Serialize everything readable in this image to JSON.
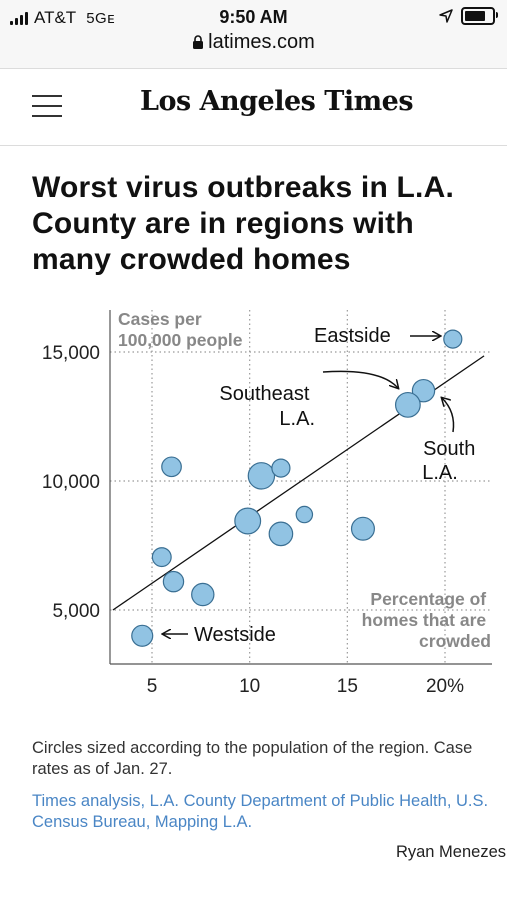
{
  "status_bar": {
    "carrier": "AT&T",
    "network": "5Gᴇ",
    "time": "9:50 AM",
    "url": "latimes.com",
    "battery_level": 0.85
  },
  "header": {
    "logo": "Los Angeles Times",
    "menu_icon": "hamburger-menu-icon"
  },
  "article": {
    "headline": "Worst virus outbreaks in L.A. County are in regions with many crowded homes",
    "caption": "Circles sized according to the population of the region. Case rates as of Jan. 27.",
    "source": "Times analysis, L.A. County Department of Public Health, U.S. Census Bureau, Mapping L.A.",
    "credit": "Ryan Menezes"
  },
  "colors": {
    "bubble_fill": "#91c3e3",
    "bubble_stroke": "#3a6f93",
    "source_link": "#4a86c5",
    "axis_label": "#888888"
  },
  "chart_data": {
    "type": "scatter",
    "title": "",
    "ylabel": "Cases per 100,000 people",
    "xlabel": "Percentage of homes that are crowded",
    "x_ticks": [
      "5",
      "10",
      "15",
      "20%"
    ],
    "y_ticks": [
      "5,000",
      "10,000",
      "15,000"
    ],
    "x_tick_values": [
      5,
      10,
      15,
      20
    ],
    "y_tick_values": [
      5000,
      10000,
      15000
    ],
    "xlim": [
      3,
      22
    ],
    "ylim": [
      3000,
      17000
    ],
    "grid": "dotted",
    "trend_line": [
      [
        3,
        5000
      ],
      [
        22,
        14850
      ]
    ],
    "points": [
      {
        "x": 20.4,
        "y": 15500,
        "size": 1.0,
        "label": "Eastside"
      },
      {
        "x": 18.9,
        "y": 13500,
        "size": 1.6
      },
      {
        "x": 18.1,
        "y": 12950,
        "size": 2.0
      },
      {
        "x": 6.0,
        "y": 10550,
        "size": 1.2
      },
      {
        "x": 10.6,
        "y": 10200,
        "size": 2.3
      },
      {
        "x": 11.6,
        "y": 10500,
        "size": 1.0
      },
      {
        "x": 12.8,
        "y": 8700,
        "size": 0.8
      },
      {
        "x": 9.9,
        "y": 8450,
        "size": 2.2
      },
      {
        "x": 11.6,
        "y": 7950,
        "size": 1.8
      },
      {
        "x": 15.8,
        "y": 8150,
        "size": 1.7
      },
      {
        "x": 5.5,
        "y": 7050,
        "size": 1.1
      },
      {
        "x": 6.1,
        "y": 6100,
        "size": 1.3
      },
      {
        "x": 7.6,
        "y": 5600,
        "size": 1.6
      },
      {
        "x": 4.5,
        "y": 4000,
        "size": 1.4,
        "label": "Westside"
      }
    ],
    "annotations": [
      "Eastside",
      "Southeast L.A.",
      "South L.A.",
      "Westside"
    ]
  }
}
